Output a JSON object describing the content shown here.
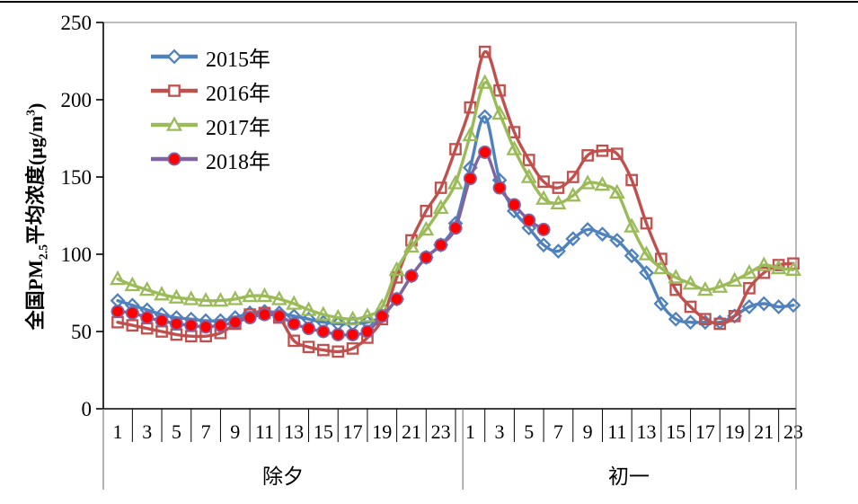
{
  "frame": {
    "top_border_color": "#000000",
    "plot_border_color": "#a6a6a6",
    "axis_color": "#000000"
  },
  "y_title": {
    "p1": "全国PM",
    "sub": "2.5",
    "p2": "平均浓度(μg/m",
    "sup": "3",
    "p3": ")"
  },
  "chart_data": {
    "type": "line",
    "title": "",
    "xlabel": "",
    "ylabel": "全国PM2.5平均浓度(μg/m3)",
    "ylim": [
      0,
      250
    ],
    "y_ticks": [
      0,
      50,
      100,
      150,
      200,
      250
    ],
    "grid": false,
    "legend_position": "upper-left-inside",
    "x_groups": [
      {
        "label": "除夕",
        "hours": [
          1,
          2,
          3,
          4,
          5,
          6,
          7,
          8,
          9,
          10,
          11,
          12,
          13,
          14,
          15,
          16,
          17,
          18,
          19,
          20,
          21,
          22,
          23,
          24
        ]
      },
      {
        "label": "初一",
        "hours": [
          1,
          2,
          3,
          4,
          5,
          6,
          7,
          8,
          9,
          10,
          11,
          12,
          13,
          14,
          15,
          16,
          17,
          18,
          19,
          20,
          21,
          22,
          23
        ]
      }
    ],
    "series": [
      {
        "name": "2015年",
        "color": "#4F81BD",
        "marker": "diamond",
        "marker_fill": "none",
        "values": [
          70,
          67,
          64,
          61,
          59,
          58,
          57,
          57,
          59,
          62,
          63,
          62,
          60,
          58,
          56,
          55,
          55,
          56,
          60,
          71,
          86,
          98,
          106,
          120,
          156,
          189,
          148,
          128,
          117,
          106,
          102,
          110,
          116,
          113,
          109,
          99,
          88,
          68,
          58,
          56,
          56,
          56,
          60,
          66,
          68,
          66,
          67
        ]
      },
      {
        "name": "2016年",
        "color": "#C0504D",
        "marker": "square",
        "marker_fill": "none",
        "values": [
          56,
          54,
          52,
          50,
          48,
          47,
          47,
          49,
          55,
          61,
          62,
          59,
          44,
          40,
          38,
          37,
          39,
          46,
          58,
          85,
          109,
          128,
          143,
          168,
          195,
          231,
          206,
          179,
          161,
          147,
          143,
          150,
          164,
          167,
          165,
          148,
          120,
          97,
          77,
          66,
          58,
          55,
          60,
          78,
          88,
          93,
          94
        ]
      },
      {
        "name": "2017年",
        "color": "#9BBB59",
        "marker": "triangle",
        "marker_fill": "none",
        "values": [
          84,
          80,
          77,
          74,
          72,
          71,
          70,
          70,
          71,
          73,
          73,
          71,
          68,
          64,
          61,
          59,
          58,
          60,
          66,
          90,
          105,
          116,
          130,
          146,
          177,
          211,
          191,
          168,
          150,
          136,
          133,
          138,
          146,
          145,
          140,
          118,
          100,
          91,
          85,
          81,
          77,
          79,
          83,
          88,
          93,
          91,
          90
        ]
      },
      {
        "name": "2018年",
        "color": "#8064A2",
        "marker": "circle",
        "marker_fill": "#FF0000",
        "values": [
          63,
          62,
          59,
          57,
          55,
          54,
          53,
          54,
          56,
          59,
          61,
          60,
          55,
          52,
          50,
          48,
          48,
          50,
          60,
          71,
          86,
          98,
          106,
          117,
          149,
          166,
          143,
          132,
          122,
          116,
          null,
          null,
          null,
          null,
          null,
          null,
          null,
          null,
          null,
          null,
          null,
          null,
          null,
          null,
          null,
          null,
          null
        ]
      }
    ]
  }
}
